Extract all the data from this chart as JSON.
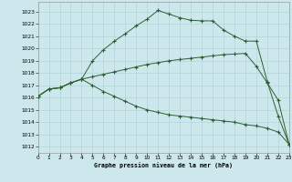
{
  "background_color": "#cce8ec",
  "grid_color": "#aad0d5",
  "line_color": "#2d6030",
  "title": "Graphe pression niveau de la mer (hPa)",
  "xlim": [
    0,
    23
  ],
  "ylim": [
    1011.5,
    1023.8
  ],
  "yticks": [
    1012,
    1013,
    1014,
    1015,
    1016,
    1017,
    1018,
    1019,
    1020,
    1021,
    1022,
    1023
  ],
  "xticks": [
    0,
    1,
    2,
    3,
    4,
    5,
    6,
    7,
    8,
    9,
    10,
    11,
    12,
    13,
    14,
    15,
    16,
    17,
    18,
    19,
    20,
    21,
    22,
    23
  ],
  "line1_x": [
    0,
    1,
    2,
    3,
    4,
    5,
    6,
    7,
    8,
    9,
    10,
    11,
    12,
    13,
    14,
    15,
    16,
    17,
    18,
    19,
    20,
    21,
    22,
    23
  ],
  "line1_y": [
    1016.1,
    1016.7,
    1016.8,
    1017.2,
    1017.5,
    1019.0,
    1019.9,
    1020.6,
    1021.2,
    1021.85,
    1022.4,
    1023.1,
    1022.8,
    1022.5,
    1022.3,
    1022.25,
    1022.25,
    1021.5,
    1021.0,
    1020.6,
    1020.6,
    1017.3,
    1014.5,
    1012.2
  ],
  "line2_x": [
    0,
    1,
    2,
    3,
    4,
    5,
    6,
    7,
    8,
    9,
    10,
    11,
    12,
    13,
    14,
    15,
    16,
    17,
    18,
    19,
    20,
    21,
    22,
    23
  ],
  "line2_y": [
    1016.1,
    1016.7,
    1016.8,
    1017.2,
    1017.5,
    1017.7,
    1017.9,
    1018.1,
    1018.3,
    1018.5,
    1018.7,
    1018.85,
    1019.0,
    1019.1,
    1019.2,
    1019.3,
    1019.4,
    1019.5,
    1019.55,
    1019.6,
    1018.55,
    1017.2,
    1015.8,
    1012.2
  ],
  "line3_x": [
    0,
    1,
    2,
    3,
    4,
    5,
    6,
    7,
    8,
    9,
    10,
    11,
    12,
    13,
    14,
    15,
    16,
    17,
    18,
    19,
    20,
    21,
    22,
    23
  ],
  "line3_y": [
    1016.1,
    1016.7,
    1016.8,
    1017.2,
    1017.5,
    1017.0,
    1016.5,
    1016.1,
    1015.7,
    1015.3,
    1015.0,
    1014.8,
    1014.6,
    1014.5,
    1014.4,
    1014.3,
    1014.2,
    1014.1,
    1014.0,
    1013.8,
    1013.7,
    1013.5,
    1013.2,
    1012.2
  ]
}
